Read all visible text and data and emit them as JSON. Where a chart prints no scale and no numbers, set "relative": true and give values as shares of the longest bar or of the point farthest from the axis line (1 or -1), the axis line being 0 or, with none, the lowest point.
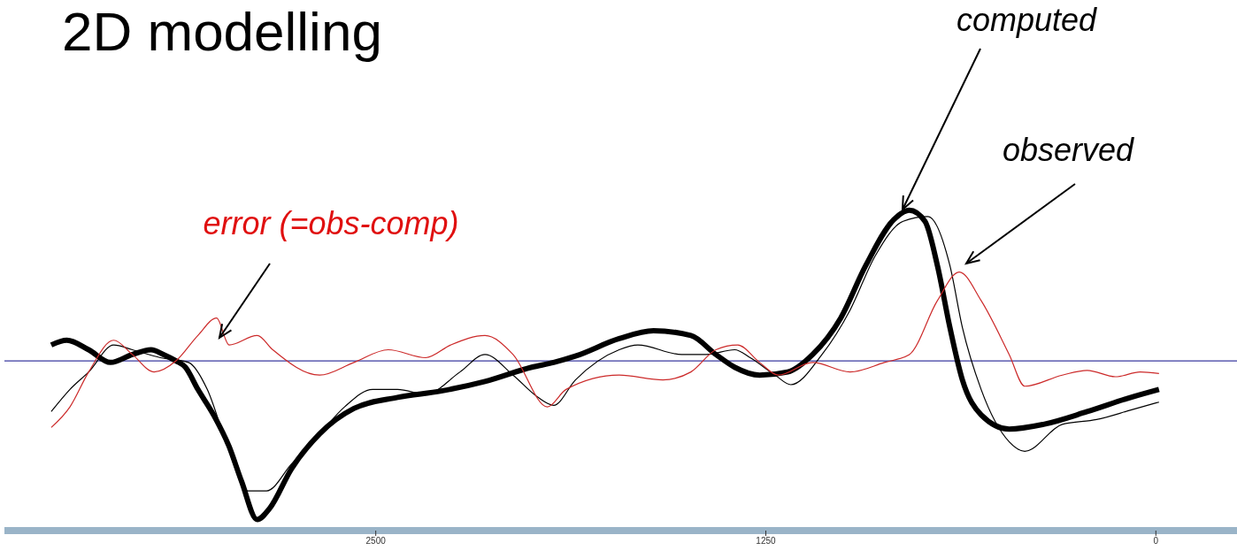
{
  "chart_data": {
    "type": "line",
    "title": "2D modelling",
    "relative": true,
    "xlim": [
      3690,
      -260
    ],
    "xticks": [
      2500,
      1250,
      0
    ],
    "grid": false,
    "legend": false,
    "marker": "none",
    "ref_lines": [
      {
        "axis": "y",
        "value": 0,
        "color": "#3a3aa0"
      }
    ],
    "annotations": [
      "computed",
      "observed",
      "error (=obs-comp)"
    ],
    "series": [
      {
        "color": "#000000",
        "x": [
          3540,
          3490,
          3420,
          3350,
          3280,
          3220,
          3180,
          3140,
          3110,
          3070,
          3020,
          2970,
          2930,
          2880,
          2840,
          2770,
          2680,
          2570,
          2430,
          2290,
          2150,
          2000,
          1930,
          1860,
          1720,
          1610,
          1490,
          1410,
          1350,
          1270,
          1180,
          1100,
          1010,
          930,
          840,
          790,
          740,
          700,
          660,
          620,
          560,
          470,
          360,
          220,
          80,
          -10
        ],
        "values": [
          0.1,
          0.13,
          0.07,
          -0.01,
          0.04,
          0.07,
          0.04,
          0,
          -0.04,
          -0.18,
          -0.34,
          -0.54,
          -0.76,
          -1,
          -0.93,
          -0.68,
          -0.46,
          -0.3,
          -0.23,
          -0.19,
          -0.13,
          -0.04,
          -0.01,
          0.03,
          0.14,
          0.19,
          0.16,
          0.04,
          -0.04,
          -0.09,
          -0.07,
          0.04,
          0.27,
          0.6,
          0.89,
          0.95,
          0.88,
          0.6,
          0.21,
          -0.12,
          -0.34,
          -0.43,
          -0.4,
          -0.32,
          -0.23,
          -0.18
        ]
      },
      {
        "color": "#000000",
        "x": [
          3540,
          3480,
          3420,
          3340,
          3280,
          3190,
          3100,
          3040,
          2980,
          2910,
          2850,
          2770,
          2680,
          2600,
          2510,
          2430,
          2340,
          2230,
          2150,
          2060,
          1980,
          1930,
          1860,
          1720,
          1660,
          1520,
          1440,
          1350,
          1300,
          1220,
          1170,
          1070,
          980,
          900,
          810,
          730,
          660,
          620,
          560,
          470,
          420,
          300,
          190,
          80,
          -10
        ],
        "values": [
          -0.32,
          -0.18,
          -0.07,
          0.1,
          0.07,
          0.02,
          -0.01,
          -0.18,
          -0.51,
          -0.82,
          -0.82,
          -0.65,
          -0.46,
          -0.29,
          -0.18,
          -0.18,
          -0.21,
          -0.07,
          0.04,
          -0.09,
          -0.23,
          -0.28,
          -0.12,
          0.07,
          0.1,
          0.04,
          0.04,
          0.07,
          0.02,
          -0.09,
          -0.15,
          0.04,
          0.32,
          0.66,
          0.88,
          0.91,
          0.6,
          0.21,
          -0.18,
          -0.51,
          -0.57,
          -0.4,
          -0.37,
          -0.31,
          -0.26
        ]
      },
      {
        "color": "#cc2a2a",
        "x": [
          3540,
          3480,
          3420,
          3340,
          3280,
          3210,
          3140,
          3070,
          3010,
          2970,
          2880,
          2830,
          2680,
          2570,
          2460,
          2340,
          2260,
          2150,
          2060,
          1950,
          1890,
          1720,
          1580,
          1490,
          1410,
          1340,
          1270,
          1210,
          1100,
          980,
          870,
          790,
          700,
          630,
          560,
          470,
          420,
          300,
          220,
          130,
          50,
          -10
        ],
        "values": [
          -0.42,
          -0.29,
          -0.07,
          0.13,
          0.04,
          -0.07,
          0,
          0.16,
          0.27,
          0.1,
          0.16,
          0.07,
          -0.09,
          -0.01,
          0.07,
          0.02,
          0.1,
          0.16,
          0.04,
          -0.29,
          -0.18,
          -0.09,
          -0.12,
          -0.07,
          0.07,
          0.1,
          -0.01,
          -0.09,
          -0.01,
          -0.07,
          -0.01,
          0.04,
          0.38,
          0.56,
          0.38,
          0.04,
          -0.16,
          -0.09,
          -0.06,
          -0.1,
          -0.07,
          -0.08
        ]
      }
    ]
  }
}
